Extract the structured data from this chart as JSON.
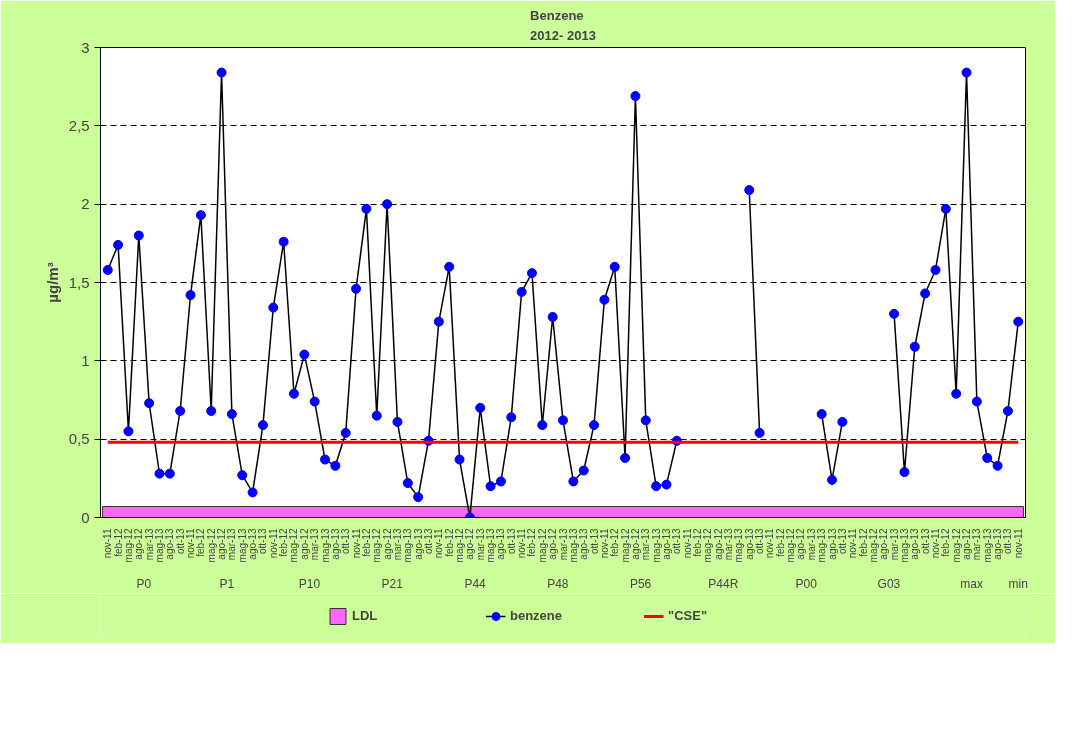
{
  "chart_data": {
    "type": "line",
    "title": "Benzene\n2012- 2013",
    "ylabel": "µg/m³",
    "categories": [
      "nov-11",
      "feb-12",
      "mag-12",
      "ago-12",
      "mar-13",
      "mag-13",
      "ago-13",
      "ott-13",
      "nov-11",
      "feb-12",
      "mag-12",
      "ago-12",
      "mar-13",
      "mag-13",
      "ago-13",
      "ott-13",
      "nov-11",
      "feb-12",
      "mag-12",
      "ago-12",
      "mar-13",
      "mag-13",
      "ago-13",
      "ott-13",
      "nov-11",
      "feb-12",
      "mag-12",
      "ago-12",
      "mar-13",
      "mag-13",
      "ago-13",
      "ott-13",
      "nov-11",
      "feb-12",
      "mag-12",
      "ago-12",
      "mar-13",
      "mag-13",
      "ago-13",
      "ott-13",
      "nov-11",
      "feb-12",
      "mag-12",
      "ago-12",
      "mar-13",
      "mag-13",
      "ago-13",
      "ott-13",
      "nov-11",
      "feb-12",
      "mag-12",
      "ago-12",
      "mar-13",
      "mag-13",
      "ago-13",
      "ott-13",
      "nov-11",
      "feb-12",
      "mag-12",
      "ago-12",
      "mar-13",
      "mag-13",
      "ago-13",
      "ott-13",
      "nov-11",
      "feb-12",
      "mag-12",
      "ago-12",
      "mar-13",
      "mag-13",
      "ago-13",
      "ott-13",
      "nov-11",
      "feb-12",
      "mag-12",
      "ago-12",
      "mar-13",
      "mag-13",
      "ago-13",
      "ott-13",
      "nov-11",
      "feb-12",
      "mag-12",
      "ago-12",
      "mar-13",
      "mag-13",
      "ago-13",
      "ott-13",
      "nov-11"
    ],
    "annotations": [
      "P0",
      "P1",
      "P10",
      "P21",
      "P44",
      "P48",
      "P56",
      "P44R",
      "P00",
      "G03",
      "max",
      "min"
    ],
    "series": [
      {
        "name": "benzene",
        "color": "#0000ff",
        "marker": "circle",
        "values": [
          1.58,
          1.74,
          0.55,
          1.8,
          0.73,
          0.28,
          0.28,
          0.68,
          1.42,
          1.93,
          0.68,
          2.84,
          0.66,
          0.27,
          0.16,
          0.59,
          1.34,
          1.76,
          0.79,
          1.04,
          0.74,
          0.37,
          0.33,
          0.54,
          1.46,
          1.97,
          0.65,
          2.0,
          0.61,
          0.22,
          0.13,
          0.49,
          1.25,
          1.6,
          0.37,
          0.0,
          0.7,
          0.2,
          0.23,
          0.64,
          1.44,
          1.56,
          0.59,
          1.28,
          0.62,
          0.23,
          0.3,
          0.59,
          1.39,
          1.6,
          0.38,
          2.69,
          0.62,
          0.2,
          0.21,
          0.49,
          null,
          null,
          null,
          null,
          null,
          null,
          2.09,
          0.54,
          null,
          null,
          null,
          null,
          null,
          0.66,
          0.24,
          0.61,
          null,
          null,
          null,
          null,
          1.3,
          0.29,
          1.09,
          1.43,
          1.58,
          1.97,
          0.79,
          2.84,
          0.74,
          0.38,
          0.33,
          0.68,
          1.25
        ]
      },
      {
        "name": "\"CSE\"",
        "type": "line",
        "color": "#ff0000",
        "marker": "none",
        "values": [
          0.48,
          0.48,
          0.48,
          0.48,
          0.48,
          0.48,
          0.48,
          0.48,
          0.48,
          0.48,
          0.48,
          0.48,
          0.48,
          0.48,
          0.48,
          0.48,
          0.48,
          0.48,
          0.48,
          0.48,
          0.48,
          0.48,
          0.48,
          0.48,
          0.48,
          0.48,
          0.48,
          0.48,
          0.48,
          0.48,
          0.48,
          0.48,
          0.48,
          0.48,
          0.48,
          0.48,
          0.48,
          0.48,
          0.48,
          0.48,
          0.48,
          0.48,
          0.48,
          0.48,
          0.48,
          0.48,
          0.48,
          0.48,
          0.48,
          0.48,
          0.48,
          0.48,
          0.48,
          0.48,
          0.48,
          0.48,
          0.48,
          0.48,
          0.48,
          0.48,
          0.48,
          0.48,
          0.48,
          0.48,
          0.48,
          0.48,
          0.48,
          0.48,
          0.48,
          0.48,
          0.48,
          0.48,
          0.48,
          0.48,
          0.48,
          0.48,
          0.48,
          0.48,
          0.48,
          0.48,
          0.48,
          0.48,
          0.48,
          0.48,
          0.48,
          0.48,
          0.48,
          0.48,
          0.48
        ]
      }
    ],
    "ylim": [
      0,
      3
    ],
    "yticks": [
      {
        "value": 0,
        "label": "0"
      },
      {
        "value": 0.5,
        "label": "0,5"
      },
      {
        "value": 1,
        "label": "1"
      },
      {
        "value": 1.5,
        "label": "1,5"
      },
      {
        "value": 2,
        "label": "2"
      },
      {
        "value": 2.5,
        "label": "2,5"
      },
      {
        "value": 3,
        "label": "3"
      }
    ],
    "bands": [
      {
        "axis": "y",
        "from": 0,
        "to": 0.07,
        "label": "LDL",
        "color": "#ff66ff"
      }
    ],
    "grid": "y",
    "legend": "bottom"
  }
}
